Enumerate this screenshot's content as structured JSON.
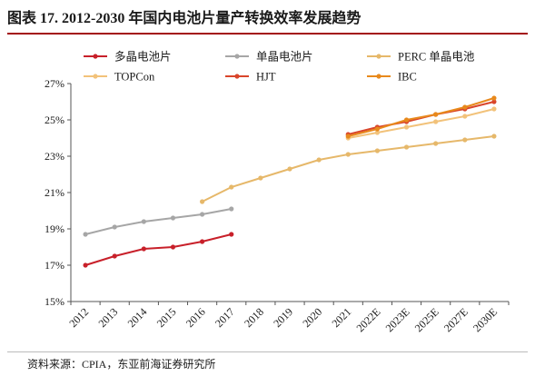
{
  "header": {
    "title": "图表 17. 2012-2030 年国内电池片量产转换效率发展趋势"
  },
  "footer": {
    "source": "资料来源：CPIA，东亚前海证券研究所"
  },
  "chart_data": {
    "type": "line",
    "title": "",
    "xlabel": "",
    "ylabel": "",
    "categories": [
      "2012",
      "2013",
      "2014",
      "2015",
      "2016",
      "2017",
      "2018",
      "2019",
      "2020",
      "2021",
      "2022E",
      "2023E",
      "2025E",
      "2027E",
      "2030E"
    ],
    "yticks": [
      "15%",
      "17%",
      "19%",
      "21%",
      "23%",
      "25%",
      "27%"
    ],
    "ylim": [
      15,
      27
    ],
    "grid": false,
    "legend_position": "top",
    "series": [
      {
        "name": "多晶电池片",
        "color": "#c8202a",
        "values": [
          17.0,
          17.5,
          17.9,
          18.0,
          18.3,
          18.7,
          null,
          null,
          null,
          null,
          null,
          null,
          null,
          null,
          null
        ]
      },
      {
        "name": "单晶电池片",
        "color": "#a6a6a6",
        "values": [
          18.7,
          19.1,
          19.4,
          19.6,
          19.8,
          20.1,
          null,
          null,
          null,
          null,
          null,
          null,
          null,
          null,
          null
        ]
      },
      {
        "name": "PERC 单晶电池",
        "color": "#e6b86a",
        "values": [
          null,
          null,
          null,
          null,
          20.5,
          21.3,
          21.8,
          22.3,
          22.8,
          23.1,
          23.3,
          23.5,
          23.7,
          23.9,
          24.1
        ]
      },
      {
        "name": "TOPCon",
        "color": "#f2c27a",
        "values": [
          null,
          null,
          null,
          null,
          null,
          null,
          null,
          null,
          null,
          24.0,
          24.3,
          24.6,
          24.9,
          25.2,
          25.6
        ]
      },
      {
        "name": "HJT",
        "color": "#d9452b",
        "values": [
          null,
          null,
          null,
          null,
          null,
          null,
          null,
          null,
          null,
          24.2,
          24.6,
          24.9,
          25.3,
          25.6,
          26.0
        ]
      },
      {
        "name": "IBC",
        "color": "#e8891c",
        "values": [
          null,
          null,
          null,
          null,
          null,
          null,
          null,
          null,
          null,
          24.1,
          24.5,
          25.0,
          25.3,
          25.7,
          26.2
        ]
      }
    ]
  }
}
